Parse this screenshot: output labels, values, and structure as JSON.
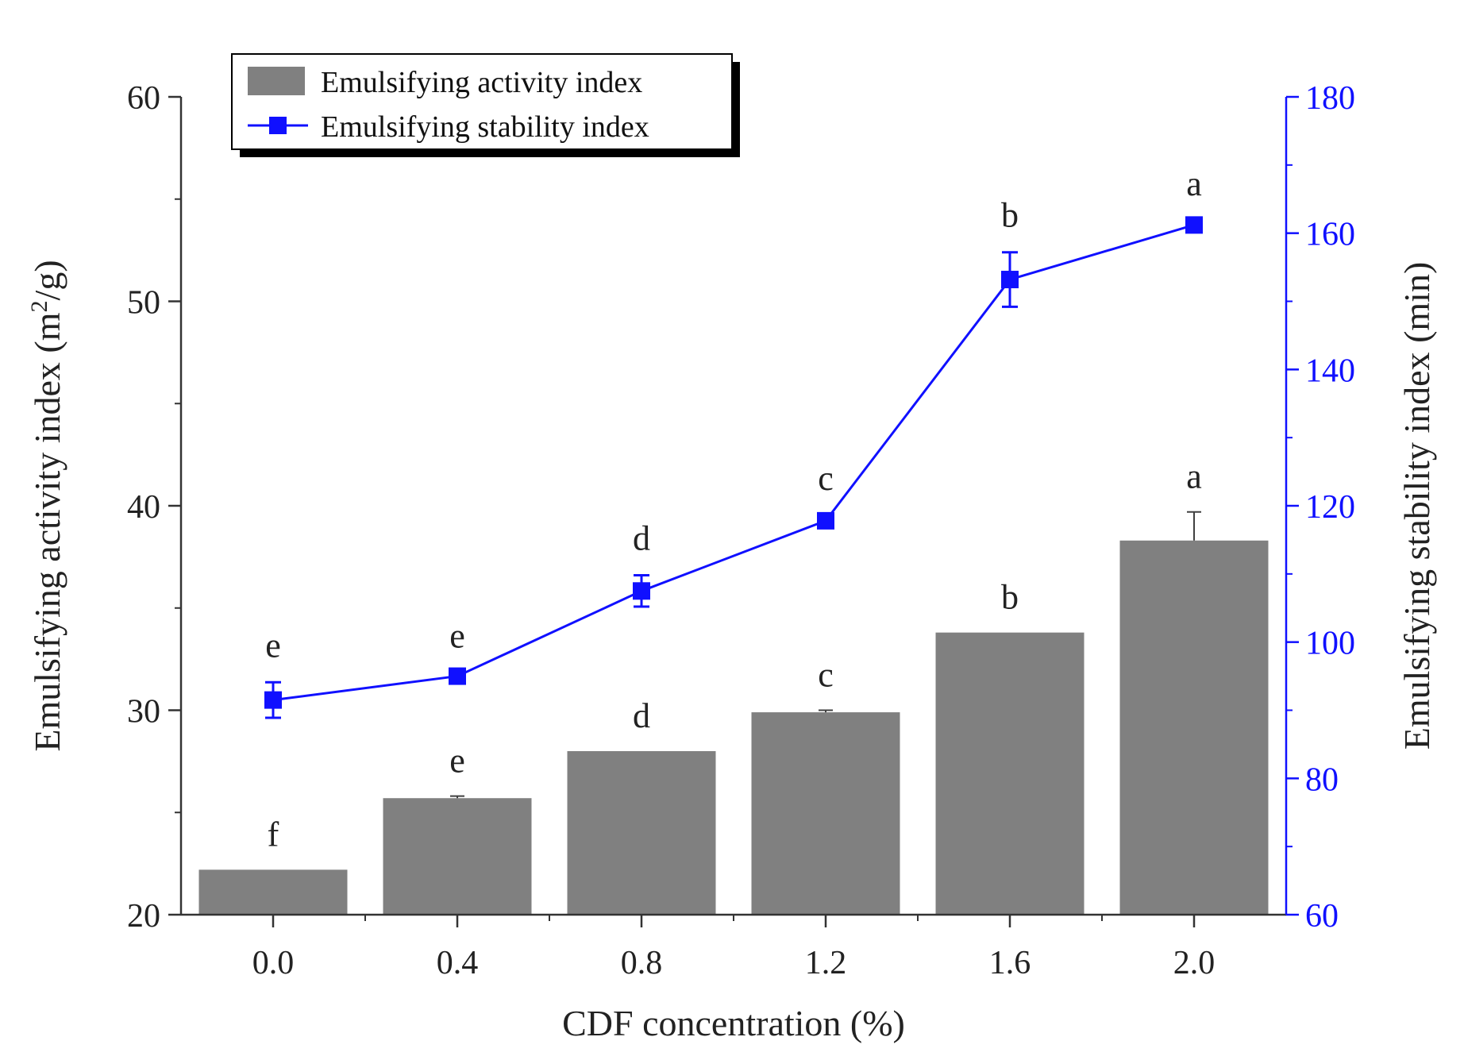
{
  "chart_data": {
    "type": "bar",
    "title": "",
    "xlabel": "CDF concentration (%)",
    "ylabel": {
      "prefix": "Emulsifying activity index (m",
      "sup": "2",
      "suffix": "/g)"
    },
    "y2label": "Emulsifying stability index (min)",
    "categories": [
      "0.0",
      "0.4",
      "0.8",
      "1.2",
      "1.6",
      "2.0"
    ],
    "ylim": [
      20,
      60
    ],
    "yticks": [
      20,
      30,
      40,
      50,
      60
    ],
    "y2lim": [
      60,
      180
    ],
    "y2ticks": [
      60,
      80,
      100,
      120,
      140,
      160,
      180
    ],
    "legend_position": "top-left",
    "grid": false,
    "series": [
      {
        "name": "Emulsifying activity index",
        "kind": "bar",
        "axis": "left",
        "color": "#808080",
        "values": [
          22.2,
          25.7,
          28.0,
          29.9,
          33.8,
          38.3
        ],
        "errors": [
          0.0,
          0.1,
          0.0,
          0.1,
          0.0,
          1.4
        ],
        "labels": [
          "f",
          "e",
          "d",
          "c",
          "b",
          "a"
        ]
      },
      {
        "name": "Emulsifying stability index",
        "kind": "line",
        "axis": "right",
        "color": "#1010ff",
        "values": [
          91.5,
          95.0,
          107.5,
          117.8,
          153.2,
          161.2
        ],
        "errors": [
          2.6,
          0.5,
          2.3,
          0.8,
          4.0,
          0.6
        ],
        "labels": [
          "e",
          "e",
          "d",
          "c",
          "b",
          "a"
        ]
      }
    ]
  }
}
